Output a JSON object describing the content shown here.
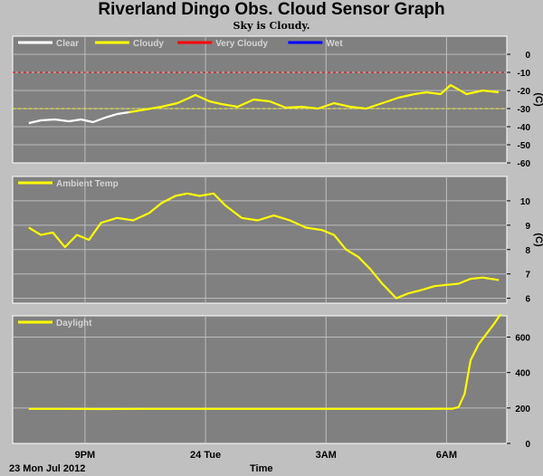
{
  "title": "Riverland Dingo Obs. Cloud Sensor Graph",
  "subtitle": "Sky is Cloudy.",
  "footer": {
    "date": "23 Mon Jul 2012",
    "xlabel": "Time"
  },
  "x_ticks": [
    "9PM",
    "24 Tue",
    "3AM",
    "6AM"
  ],
  "colors": {
    "background": "#c0c0c0",
    "plot": "#808080",
    "yellow": "#ffff00",
    "white": "#ffffff",
    "red": "#ff0000",
    "blue": "#0000ff"
  },
  "chart_data": [
    {
      "type": "line",
      "ylabel": "(C)",
      "ylim": [
        -60,
        10
      ],
      "yticks": [
        "0",
        "-10",
        "-20",
        "-30",
        "-40",
        "-50",
        "-60"
      ],
      "legend": [
        {
          "name": "Clear",
          "color": "#ffffff"
        },
        {
          "name": "Cloudy",
          "color": "#ffff00"
        },
        {
          "name": "Very Cloudy",
          "color": "#ff0000"
        },
        {
          "name": "Wet",
          "color": "#0000ff"
        }
      ],
      "thresholds": [
        {
          "value": -10,
          "color": "#ff0000"
        },
        {
          "value": -30,
          "color": "#ffff00"
        }
      ],
      "series": [
        {
          "name": "Clear",
          "color": "#ffffff",
          "x": [
            19.6,
            19.9,
            20.25,
            20.6,
            20.9,
            21.2,
            21.5,
            21.8,
            22.1
          ],
          "values": [
            -38,
            -36.5,
            -36,
            -37,
            -36,
            -37.5,
            -35,
            -33,
            -32
          ]
        },
        {
          "name": "Cloudy",
          "color": "#ffff00",
          "x": [
            22.1,
            22.5,
            22.9,
            23.3,
            23.5,
            23.75,
            24.1,
            24.4,
            24.8,
            25.2,
            25.6,
            26.0,
            26.4,
            26.8,
            27.2,
            27.6,
            28.0,
            28.4,
            28.8,
            29.2,
            29.5,
            29.85,
            30.1,
            30.5,
            30.9,
            31.3
          ],
          "values": [
            -32,
            -30.5,
            -29,
            -27,
            -25,
            -22.5,
            -26,
            -27.5,
            -29,
            -25,
            -26,
            -29.5,
            -29,
            -30,
            -27,
            -29,
            -30,
            -27,
            -24,
            -22,
            -21,
            -22,
            -17,
            -22,
            -20,
            -21
          ]
        }
      ]
    },
    {
      "type": "line",
      "ylabel": "(C)",
      "ylim": [
        5.8,
        11
      ],
      "yticks": [
        "10",
        "9",
        "8",
        "7",
        "6"
      ],
      "legend": [
        {
          "name": "Ambient Temp",
          "color": "#ffff00"
        }
      ],
      "series": [
        {
          "name": "Ambient Temp",
          "color": "#ffff00",
          "x": [
            19.6,
            19.9,
            20.2,
            20.5,
            20.8,
            21.1,
            21.4,
            21.8,
            22.2,
            22.6,
            22.9,
            23.25,
            23.55,
            23.85,
            24.2,
            24.5,
            24.9,
            25.3,
            25.7,
            26.1,
            26.5,
            26.9,
            27.2,
            27.5,
            27.8,
            28.1,
            28.4,
            28.75,
            29.05,
            29.4,
            29.7,
            30.0,
            30.3,
            30.6,
            30.9,
            31.3
          ],
          "values": [
            8.9,
            8.6,
            8.7,
            8.1,
            8.6,
            8.4,
            9.1,
            9.3,
            9.2,
            9.5,
            9.9,
            10.2,
            10.3,
            10.2,
            10.3,
            9.8,
            9.3,
            9.2,
            9.4,
            9.2,
            8.9,
            8.8,
            8.6,
            8.0,
            7.7,
            7.2,
            6.6,
            6.0,
            6.2,
            6.35,
            6.5,
            6.55,
            6.6,
            6.8,
            6.85,
            6.75
          ]
        }
      ]
    },
    {
      "type": "line",
      "ylim": [
        0,
        720
      ],
      "yticks": [
        "600",
        "400",
        "200",
        "0"
      ],
      "legend": [
        {
          "name": "Daylight",
          "color": "#ffff00"
        }
      ],
      "series": [
        {
          "name": "Daylight",
          "color": "#ffff00",
          "x": [
            19.6,
            20.5,
            21.5,
            22.5,
            23.5,
            24.5,
            25.5,
            26.5,
            27.5,
            28.5,
            29.5,
            30.15,
            30.3,
            30.45,
            30.6,
            30.8,
            31.0,
            31.2,
            31.35
          ],
          "values": [
            195,
            195,
            194,
            195,
            195,
            195,
            195,
            195,
            195,
            195,
            195,
            196,
            205,
            280,
            470,
            560,
            620,
            680,
            730
          ]
        }
      ]
    }
  ]
}
